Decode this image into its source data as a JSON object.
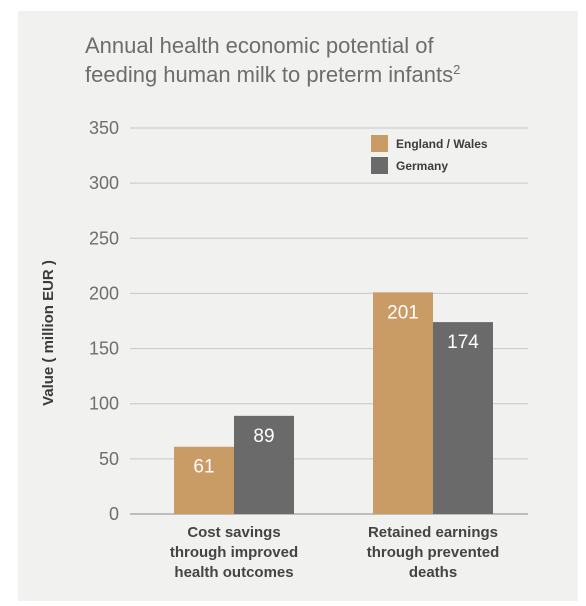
{
  "chart_data": {
    "type": "bar",
    "title_lines": [
      "Annual health economic potential of",
      "feeding human milk to preterm infants"
    ],
    "title_superscript": "2",
    "ylabel": "Value ( million EUR )",
    "xlabel": "",
    "ylim": [
      0,
      350
    ],
    "yticks": [
      "0",
      "50",
      "100",
      "150",
      "200",
      "250",
      "300",
      "350"
    ],
    "grid": true,
    "legend_position": "top-right",
    "categories": [
      [
        "Cost savings",
        "through improved",
        "health outcomes"
      ],
      [
        "Retained earnings",
        "through prevented",
        "deaths"
      ]
    ],
    "series": [
      {
        "name": "England / Wales",
        "color": "#c89c64",
        "values": [
          61,
          201
        ],
        "labels": [
          "61",
          "201"
        ]
      },
      {
        "name": "Germany",
        "color": "#6a6a6a",
        "values": [
          89,
          174
        ],
        "labels": [
          "89",
          "174"
        ]
      }
    ]
  }
}
